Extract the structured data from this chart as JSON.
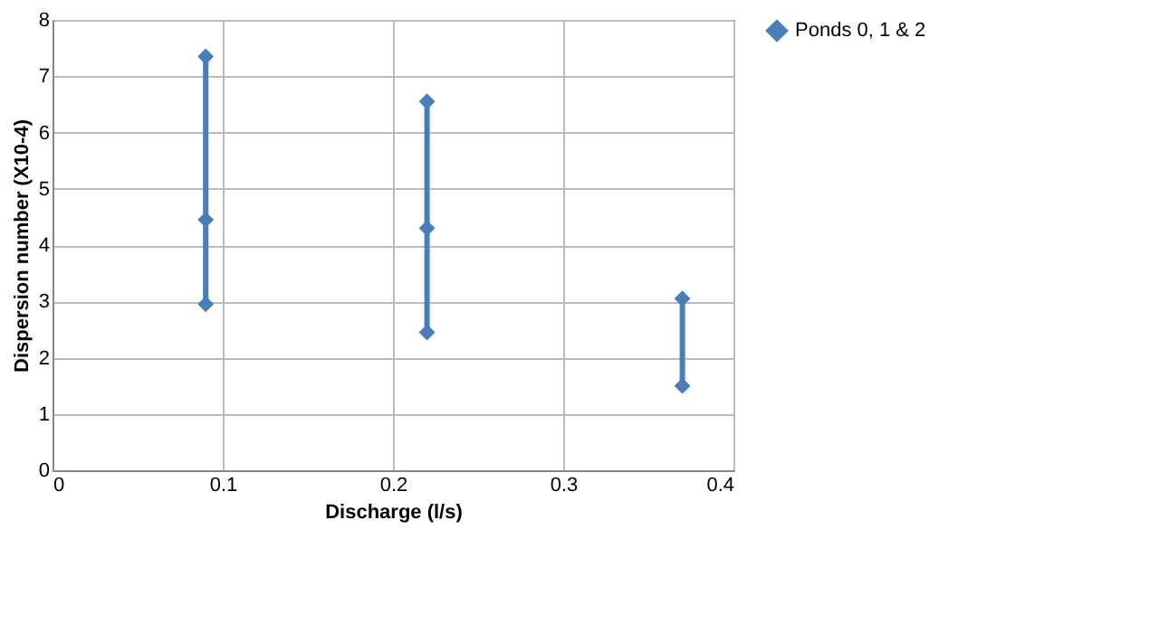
{
  "chart_data": {
    "type": "line",
    "xlabel": "Discharge (l/s)",
    "ylabel": "Dispersion number (X10-4)",
    "x": [
      0.09,
      0.09,
      0.09,
      0.22,
      0.22,
      0.22,
      0.37,
      0.37
    ],
    "series": [
      {
        "name": "Ponds 0, 1 & 2",
        "color": "#4a7ebb",
        "values": [
          2.95,
          4.45,
          7.35,
          2.45,
          4.3,
          6.55,
          1.5,
          3.05
        ]
      }
    ],
    "xlim": [
      0,
      0.4
    ],
    "xticks": [
      0,
      0.1,
      0.2,
      0.3,
      0.4
    ],
    "ylim": [
      0,
      8
    ],
    "yticks": [
      0,
      1,
      2,
      3,
      4,
      5,
      6,
      7,
      8
    ],
    "grid": true,
    "legend": "right",
    "marker": "diamond",
    "line_style": "solid"
  }
}
